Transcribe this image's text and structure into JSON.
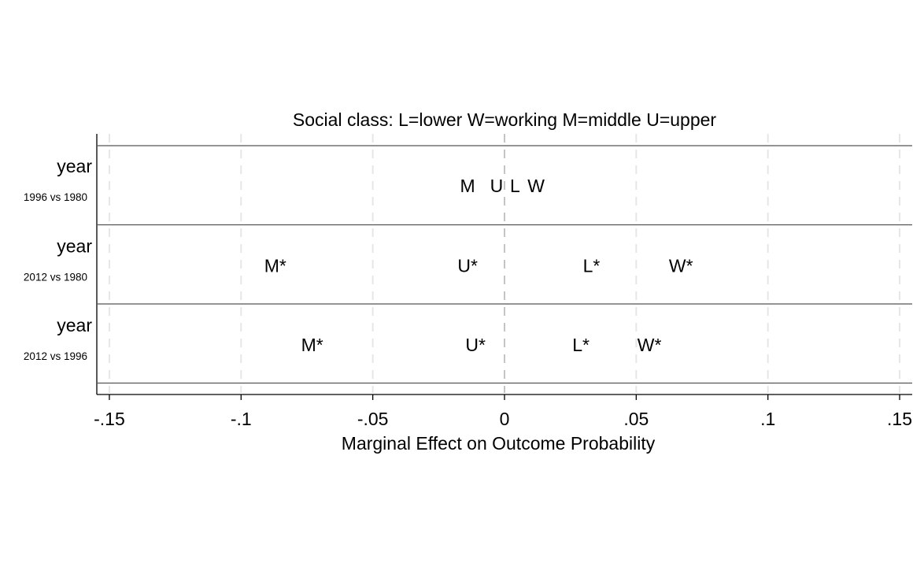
{
  "chart_data": {
    "type": "scatter",
    "title": "Social class: L=lower  W=working  M=middle  U=upper",
    "xlabel": "Marginal Effect on Outcome Probability",
    "ylabel": "",
    "xlim": [
      -0.155,
      0.155
    ],
    "xticks": [
      -0.15,
      -0.1,
      -0.05,
      0,
      0.05,
      0.1,
      0.15
    ],
    "xtick_labels": [
      "-.15",
      "-.1",
      "-.05",
      "0",
      ".05",
      ".1",
      ".15"
    ],
    "grid": "vertical dashed at x ticks",
    "legend": "none",
    "rows": [
      {
        "name": "year",
        "sublabel": "1996 vs 1980",
        "points": [
          {
            "label": "M",
            "x": -0.014
          },
          {
            "label": "U",
            "x": -0.003
          },
          {
            "label": "L",
            "x": 0.004
          },
          {
            "label": "W",
            "x": 0.012
          }
        ]
      },
      {
        "name": "year",
        "sublabel": "2012 vs 1980",
        "points": [
          {
            "label": "M*",
            "x": -0.087
          },
          {
            "label": "U*",
            "x": -0.014
          },
          {
            "label": "L*",
            "x": 0.033
          },
          {
            "label": "W*",
            "x": 0.067
          }
        ]
      },
      {
        "name": "year",
        "sublabel": "2012 vs 1996",
        "points": [
          {
            "label": "M*",
            "x": -0.073
          },
          {
            "label": "U*",
            "x": -0.011
          },
          {
            "label": "L*",
            "x": 0.029
          },
          {
            "label": "W*",
            "x": 0.055
          }
        ]
      }
    ]
  }
}
